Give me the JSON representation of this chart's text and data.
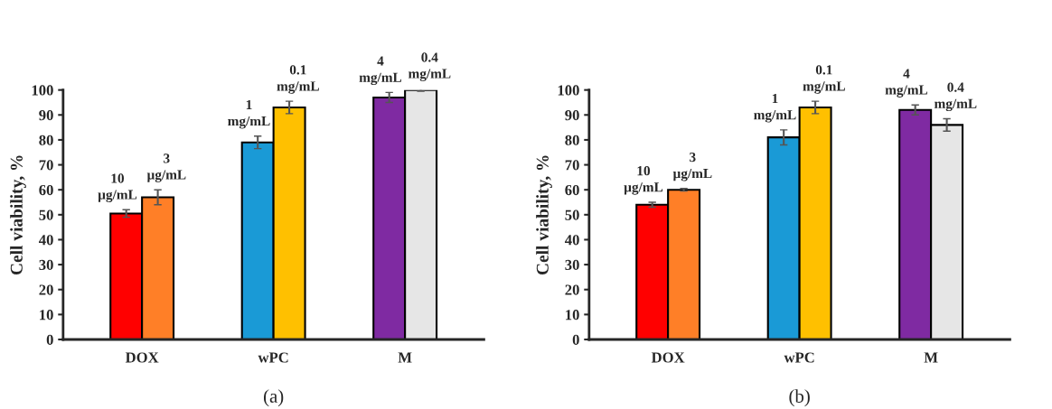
{
  "chart_data": [
    {
      "type": "bar",
      "ylabel": "Cell viability, %",
      "categories": [
        "DOX",
        "wPC",
        "M"
      ],
      "ylim": [
        0,
        100
      ],
      "yticks": [
        0,
        10,
        20,
        30,
        40,
        50,
        60,
        70,
        80,
        90,
        100
      ],
      "grid": false,
      "legend": false,
      "annotations": [
        "(a)",
        {
          "text": "10\nµg/mL",
          "x": "DOX",
          "y": 50.5
        },
        {
          "text": "3\nµg/mL",
          "x": "DOX",
          "y": 57
        },
        {
          "text": "1\nmg/mL",
          "x": "wPC",
          "y": 79
        },
        {
          "text": "0.1\nmg/mL",
          "x": "wPC",
          "y": 93
        },
        {
          "text": "4\nmg/mL",
          "x": "M",
          "y": 97
        },
        {
          "text": "0.4\nmg/mL",
          "x": "M",
          "y": 100
        }
      ],
      "series": [
        {
          "colors": [
            "#ff0000",
            "#1a9ad6",
            "#7f2aa2"
          ],
          "values": [
            50.5,
            79,
            97
          ],
          "errors": [
            1.5,
            2.5,
            2
          ]
        },
        {
          "colors": [
            "#ff7f27",
            "#ffc000",
            "#e6e6e6"
          ],
          "values": [
            57,
            93,
            100
          ],
          "errors": [
            3,
            2.5,
            0.5
          ]
        }
      ]
    },
    {
      "type": "bar",
      "ylabel": "Cell viability, %",
      "categories": [
        "DOX",
        "wPC",
        "M"
      ],
      "ylim": [
        0,
        100
      ],
      "yticks": [
        0,
        10,
        20,
        30,
        40,
        50,
        60,
        70,
        80,
        90,
        100
      ],
      "grid": false,
      "legend": false,
      "annotations": [
        "(b)",
        {
          "text": "10\nµg/mL",
          "x": "DOX",
          "y": 54
        },
        {
          "text": "3\nµg/mL",
          "x": "DOX",
          "y": 60
        },
        {
          "text": "1\nmg/mL",
          "x": "wPC",
          "y": 81
        },
        {
          "text": "0.1\nmg/mL",
          "x": "wPC",
          "y": 93
        },
        {
          "text": "4\nmg/mL",
          "x": "M",
          "y": 92
        },
        {
          "text": "0.4\nmg/mL",
          "x": "M",
          "y": 86
        }
      ],
      "series": [
        {
          "colors": [
            "#ff0000",
            "#1a9ad6",
            "#7f2aa2"
          ],
          "values": [
            54,
            81,
            92
          ],
          "errors": [
            1,
            3,
            2
          ]
        },
        {
          "colors": [
            "#ff7f27",
            "#ffc000",
            "#e6e6e6"
          ],
          "values": [
            60,
            93,
            86
          ],
          "errors": [
            0.5,
            2.5,
            2.5
          ]
        }
      ]
    }
  ]
}
